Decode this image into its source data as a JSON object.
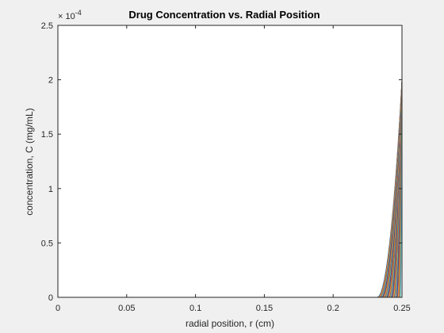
{
  "chart_data": {
    "type": "line",
    "title": "Drug Concentration vs. Radial Position",
    "xlabel": "radial position, r (cm)",
    "ylabel": "concentration, C (mg/mL)",
    "xlim": [
      0,
      0.25
    ],
    "ylim": [
      0,
      0.00025
    ],
    "y_exponent_label": "× 10",
    "y_exponent_power": "-4",
    "x_ticks": [
      0,
      0.05,
      0.1,
      0.15,
      0.2,
      0.25
    ],
    "x_tick_labels": [
      "0",
      "0.05",
      "0.1",
      "0.15",
      "0.2",
      "0.25"
    ],
    "y_ticks": [
      0,
      5e-05,
      0.0001,
      0.00015,
      0.0002,
      0.00025
    ],
    "y_tick_labels": [
      "0",
      "0.5",
      "1",
      "1.5",
      "2",
      "2.5"
    ],
    "grid": false,
    "legend": "none",
    "family": {
      "description_of_profiles": "family of concentration profiles, each zero for r below a front and rising steeply to the surface value at r = 0.25",
      "r_surface": 0.25,
      "c_surface_max": 0.0002,
      "front_start_min": 0.232,
      "front_start_max": 0.249,
      "count": 34
    },
    "colors": [
      "#0072BD",
      "#D95319",
      "#EDB120",
      "#7E2F8E",
      "#77AC30",
      "#4DBEEE",
      "#A2142F"
    ]
  }
}
